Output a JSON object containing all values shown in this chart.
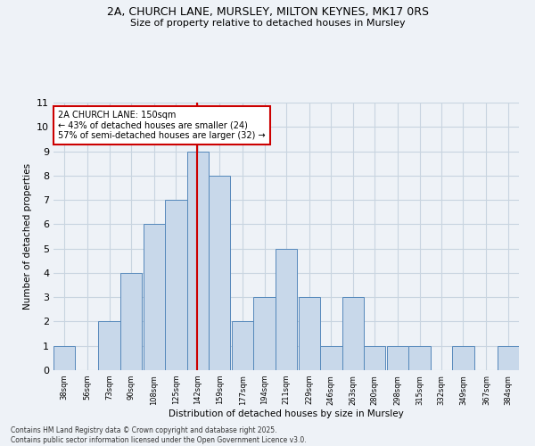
{
  "title1": "2A, CHURCH LANE, MURSLEY, MILTON KEYNES, MK17 0RS",
  "title2": "Size of property relative to detached houses in Mursley",
  "xlabel": "Distribution of detached houses by size in Mursley",
  "ylabel": "Number of detached properties",
  "bins": [
    38,
    56,
    73,
    90,
    108,
    125,
    142,
    159,
    177,
    194,
    211,
    229,
    246,
    263,
    280,
    298,
    315,
    332,
    349,
    367,
    384
  ],
  "counts": [
    1,
    0,
    2,
    4,
    6,
    7,
    9,
    8,
    2,
    3,
    5,
    3,
    1,
    3,
    1,
    1,
    1,
    0,
    1,
    0,
    1
  ],
  "bar_color": "#c8d8ea",
  "bar_edge_color": "#5588bb",
  "vline_x": 150,
  "vline_color": "#cc0000",
  "annotation_title": "2A CHURCH LANE: 150sqm",
  "annotation_line1": "← 43% of detached houses are smaller (24)",
  "annotation_line2": "57% of semi-detached houses are larger (32) →",
  "annotation_box_edgecolor": "#cc0000",
  "annotation_box_facecolor": "#ffffff",
  "ylim_max": 11,
  "yticks": [
    0,
    1,
    2,
    3,
    4,
    5,
    6,
    7,
    8,
    9,
    10,
    11
  ],
  "footnote": "Contains HM Land Registry data © Crown copyright and database right 2025.\nContains public sector information licensed under the Open Government Licence v3.0.",
  "bg_color": "#eef2f7",
  "grid_color": "#c8d4e0",
  "bin_width": 17
}
